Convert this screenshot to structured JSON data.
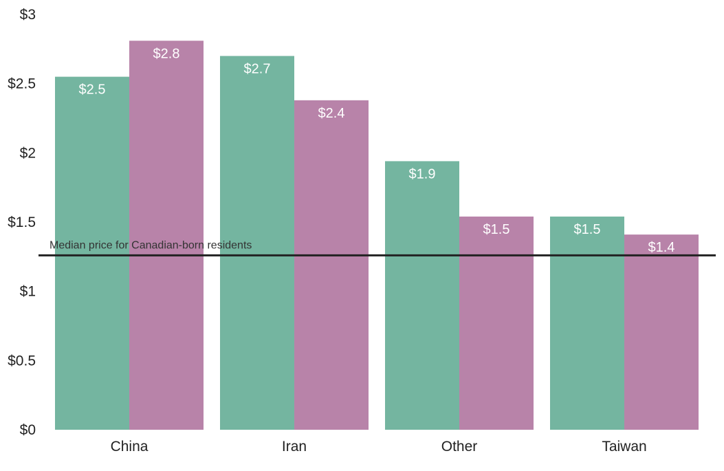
{
  "chart_data": {
    "type": "bar",
    "title": "",
    "xlabel": "",
    "ylabel": "",
    "categories": [
      "China",
      "Iran",
      "Other",
      "Taiwan"
    ],
    "series": [
      {
        "values": [
          2.55,
          2.7,
          1.94,
          1.54
        ],
        "labels": [
          "$2.5",
          "$2.7",
          "$1.9",
          "$1.5"
        ]
      },
      {
        "values": [
          2.81,
          2.38,
          1.54,
          1.41
        ],
        "labels": [
          "$2.8",
          "$2.4",
          "$1.5",
          "$1.4"
        ]
      }
    ],
    "ylim": [
      0,
      3
    ],
    "yticks": [
      0,
      0.5,
      1,
      1.5,
      2,
      2.5,
      3
    ],
    "ytick_labels": [
      "$0",
      "$0.5",
      "$1",
      "$1.5",
      "$2",
      "$2.5",
      "$3"
    ],
    "reference_line": {
      "value": 1.26,
      "label": "Median price for Canadian-born residents"
    },
    "grid": false,
    "legend": "none",
    "colors": [
      "#74b5a0",
      "#b883a9",
      "#222222"
    ]
  }
}
